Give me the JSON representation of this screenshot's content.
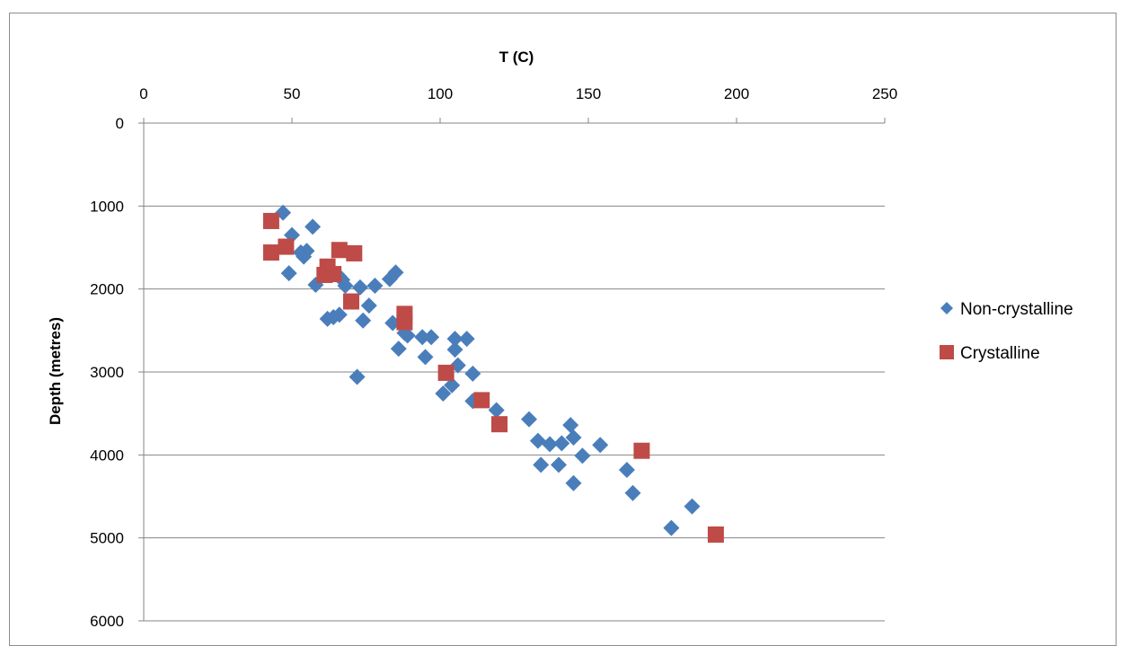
{
  "chart_data": {
    "type": "scatter",
    "title": "",
    "xlabel": "T (C)",
    "ylabel": "Depth (metres)",
    "xlim": [
      0,
      250
    ],
    "ylim": [
      0,
      6000
    ],
    "y_inverted": true,
    "x_axis_position": "top",
    "x_ticks": [
      "0",
      "50",
      "100",
      "150",
      "200",
      "250"
    ],
    "y_ticks": [
      "0",
      "1000",
      "2000",
      "3000",
      "4000",
      "5000",
      "6000"
    ],
    "grid": "horizontal",
    "legend_placement": "right",
    "series": [
      {
        "name": "Non-crystalline",
        "color": "#4a7ebb",
        "marker": "diamond",
        "points": [
          [
            47,
            1080
          ],
          [
            57,
            1250
          ],
          [
            50,
            1350
          ],
          [
            53,
            1560
          ],
          [
            55,
            1540
          ],
          [
            54,
            1610
          ],
          [
            49,
            1810
          ],
          [
            58,
            1950
          ],
          [
            62,
            1800
          ],
          [
            66,
            1850
          ],
          [
            67,
            1890
          ],
          [
            68,
            1960
          ],
          [
            73,
            1980
          ],
          [
            78,
            1960
          ],
          [
            83,
            1880
          ],
          [
            85,
            1800
          ],
          [
            62,
            2360
          ],
          [
            64,
            2340
          ],
          [
            66,
            2310
          ],
          [
            74,
            2380
          ],
          [
            76,
            2200
          ],
          [
            84,
            2410
          ],
          [
            88,
            2530
          ],
          [
            89,
            2560
          ],
          [
            94,
            2580
          ],
          [
            97,
            2580
          ],
          [
            86,
            2720
          ],
          [
            95,
            2820
          ],
          [
            105,
            2600
          ],
          [
            105,
            2730
          ],
          [
            106,
            2920
          ],
          [
            109,
            2600
          ],
          [
            111,
            3020
          ],
          [
            72,
            3060
          ],
          [
            104,
            3160
          ],
          [
            101,
            3260
          ],
          [
            111,
            3350
          ],
          [
            119,
            3460
          ],
          [
            130,
            3570
          ],
          [
            133,
            3830
          ],
          [
            137,
            3870
          ],
          [
            141,
            3860
          ],
          [
            144,
            3640
          ],
          [
            145,
            3790
          ],
          [
            154,
            3880
          ],
          [
            134,
            4120
          ],
          [
            140,
            4120
          ],
          [
            148,
            4010
          ],
          [
            163,
            4180
          ],
          [
            145,
            4340
          ],
          [
            165,
            4460
          ],
          [
            185,
            4620
          ],
          [
            178,
            4880
          ]
        ]
      },
      {
        "name": "Crystalline",
        "color": "#be4b48",
        "marker": "square",
        "points": [
          [
            43,
            1180
          ],
          [
            43,
            1560
          ],
          [
            48,
            1490
          ],
          [
            62,
            1730
          ],
          [
            61,
            1830
          ],
          [
            64,
            1820
          ],
          [
            66,
            1530
          ],
          [
            71,
            1570
          ],
          [
            70,
            2150
          ],
          [
            88,
            2300
          ],
          [
            88,
            2400
          ],
          [
            102,
            3010
          ],
          [
            114,
            3340
          ],
          [
            120,
            3630
          ],
          [
            168,
            3950
          ],
          [
            193,
            4960
          ]
        ]
      }
    ]
  }
}
